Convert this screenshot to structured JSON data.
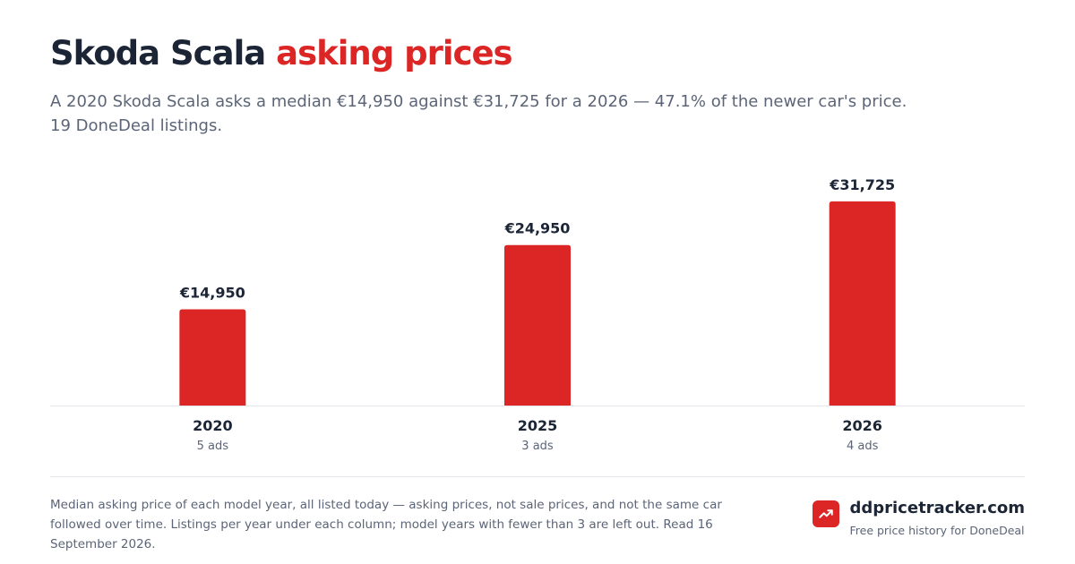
{
  "header": {
    "title_main": "Skoda Scala",
    "title_accent": "asking prices",
    "subtitle": "A 2020 Skoda Scala asks a median €14,950 against €31,725 for a 2026 — 47.1% of the newer car's price. 19 DoneDeal listings."
  },
  "chart_data": {
    "type": "bar",
    "categories": [
      "2020",
      "2025",
      "2026"
    ],
    "values": [
      14950,
      24950,
      31725
    ],
    "value_labels": [
      "€14,950",
      "€24,950",
      "€31,725"
    ],
    "sublabels": [
      "5 ads",
      "3 ads",
      "4 ads"
    ],
    "ylim": [
      0,
      35000
    ],
    "title": "",
    "xlabel": "",
    "ylabel": "",
    "grid": false,
    "bar_color": "#dc2626"
  },
  "footer": {
    "note": "Median asking price of each model year, all listed today — asking prices, not sale prices, and not the same car followed over time. Listings per year under each column; model years with fewer than 3 are left out. Read 16 September 2026.",
    "brand_name": "ddpricetracker.com",
    "brand_tagline": "Free price history for DoneDeal",
    "brand_icon": "trending-up-icon"
  },
  "colors": {
    "accent": "#dc2626",
    "text": "#1c2536",
    "muted": "#5b6577"
  }
}
